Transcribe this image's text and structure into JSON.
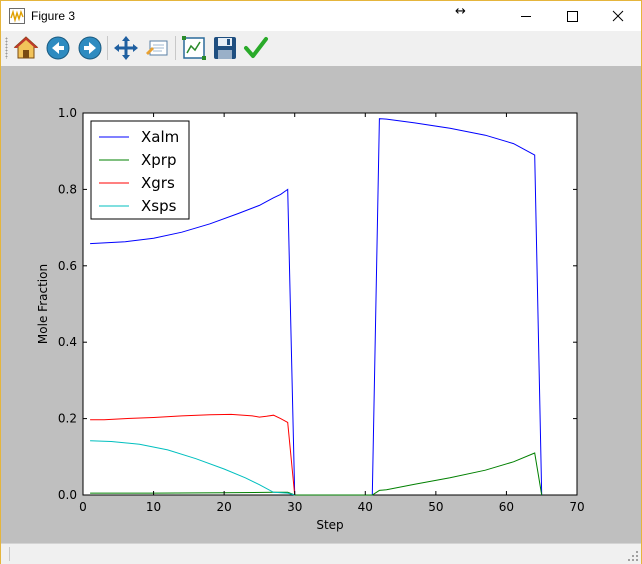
{
  "window": {
    "title": "Figure 3"
  },
  "toolbar": {
    "buttons": [
      {
        "name": "home-icon"
      },
      {
        "name": "back-arrow-icon"
      },
      {
        "name": "forward-arrow-icon"
      },
      {
        "name": "pan-icon"
      },
      {
        "name": "zoom-rect-icon"
      },
      {
        "name": "configure-subplots-icon"
      },
      {
        "name": "save-icon"
      },
      {
        "name": "edit-checkmark-icon"
      }
    ]
  },
  "chart_data": {
    "type": "line",
    "title": "",
    "xlabel": "Step",
    "ylabel": "Mole Fraction",
    "xlim": [
      0,
      70
    ],
    "ylim": [
      0.0,
      1.0
    ],
    "xticks": [
      "0",
      "10",
      "20",
      "30",
      "40",
      "50",
      "60",
      "70"
    ],
    "yticks": [
      "0.0",
      "0.2",
      "0.4",
      "0.6",
      "0.8",
      "1.0"
    ],
    "grid": false,
    "legend_position": "top-left",
    "series": [
      {
        "name": "Xalm",
        "color": "#0000ff",
        "points": [
          [
            1,
            0.658
          ],
          [
            3,
            0.66
          ],
          [
            6,
            0.663
          ],
          [
            10,
            0.672
          ],
          [
            14,
            0.688
          ],
          [
            18,
            0.71
          ],
          [
            22,
            0.737
          ],
          [
            25,
            0.758
          ],
          [
            26,
            0.768
          ],
          [
            27,
            0.778
          ],
          [
            28,
            0.787
          ],
          [
            29,
            0.8
          ],
          [
            30,
            0.0
          ],
          [
            41,
            0.0
          ],
          [
            42,
            0.985
          ],
          [
            43,
            0.984
          ],
          [
            47,
            0.974
          ],
          [
            52,
            0.96
          ],
          [
            57,
            0.942
          ],
          [
            61,
            0.92
          ],
          [
            64,
            0.89
          ],
          [
            65,
            0.0
          ]
        ]
      },
      {
        "name": "Xprp",
        "color": "#008000",
        "points": [
          [
            1,
            0.005
          ],
          [
            10,
            0.005
          ],
          [
            20,
            0.006
          ],
          [
            27,
            0.007
          ],
          [
            29,
            0.007
          ],
          [
            30,
            0.0
          ],
          [
            41,
            0.0
          ],
          [
            42,
            0.012
          ],
          [
            43,
            0.014
          ],
          [
            47,
            0.028
          ],
          [
            52,
            0.045
          ],
          [
            57,
            0.065
          ],
          [
            61,
            0.087
          ],
          [
            64,
            0.11
          ],
          [
            65,
            0.0
          ]
        ]
      },
      {
        "name": "Xgrs",
        "color": "#ff0000",
        "points": [
          [
            1,
            0.197
          ],
          [
            3,
            0.197
          ],
          [
            6,
            0.2
          ],
          [
            10,
            0.203
          ],
          [
            14,
            0.207
          ],
          [
            18,
            0.21
          ],
          [
            21,
            0.211
          ],
          [
            24,
            0.207
          ],
          [
            25,
            0.204
          ],
          [
            26,
            0.206
          ],
          [
            27,
            0.209
          ],
          [
            28,
            0.2
          ],
          [
            29,
            0.19
          ],
          [
            30,
            0.0
          ]
        ]
      },
      {
        "name": "Xsps",
        "color": "#00bfbf",
        "points": [
          [
            1,
            0.142
          ],
          [
            4,
            0.14
          ],
          [
            8,
            0.133
          ],
          [
            12,
            0.118
          ],
          [
            16,
            0.095
          ],
          [
            20,
            0.068
          ],
          [
            23,
            0.045
          ],
          [
            25,
            0.027
          ],
          [
            27,
            0.007
          ],
          [
            29,
            0.005
          ],
          [
            30,
            0.0
          ]
        ]
      }
    ]
  }
}
